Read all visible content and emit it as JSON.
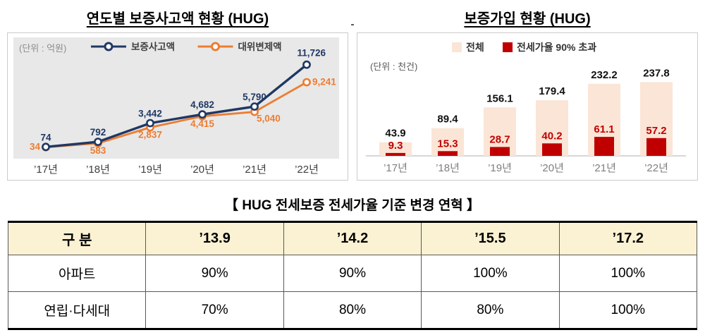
{
  "separator_dash": "-",
  "chart_data": [
    {
      "type": "line",
      "title": "연도별 보증사고액 현황 (HUG)",
      "unit": "(단위 : 억원)",
      "categories": [
        "’17년",
        "’18년",
        "’19년",
        "’20년",
        "’21년",
        "’22년"
      ],
      "series": [
        {
          "name": "보증사고액",
          "color": "#1F3864",
          "values": [
            74,
            792,
            3442,
            4682,
            5790,
            11726
          ]
        },
        {
          "name": "대위변제액",
          "color": "#ED7D31",
          "values": [
            34,
            583,
            2837,
            4415,
            5040,
            9241
          ]
        }
      ],
      "ylim": [
        0,
        12000
      ],
      "grid": false,
      "legend_position": "top",
      "plot_background": "#E8E8E8"
    },
    {
      "type": "bar",
      "title": "보증가입 현황 (HUG)",
      "unit": "(단위 : 천건)",
      "categories": [
        "’17년",
        "’18년",
        "’19년",
        "’20년",
        "’21년",
        "’22년"
      ],
      "series": [
        {
          "name": "전체",
          "color": "#FBE5D6",
          "values": [
            43.9,
            89.4,
            156.1,
            179.4,
            232.2,
            237.8
          ]
        },
        {
          "name": "전세가율 90% 초과",
          "color": "#C00000",
          "values": [
            9.3,
            15.3,
            28.7,
            40.2,
            61.1,
            57.2
          ]
        }
      ],
      "ylim": [
        0,
        250
      ],
      "grid": false,
      "legend_position": "top",
      "bar_style": "overlapped"
    }
  ],
  "table": {
    "title": "【 HUG 전세보증 전세가율 기준 변경 연혁 】",
    "headers": [
      "구  분",
      "’13.9",
      "’14.2",
      "’15.5",
      "’17.2"
    ],
    "rows": [
      [
        "아파트",
        "90%",
        "90%",
        "100%",
        "100%"
      ],
      [
        "연립·다세대",
        "70%",
        "80%",
        "80%",
        "100%"
      ]
    ]
  }
}
